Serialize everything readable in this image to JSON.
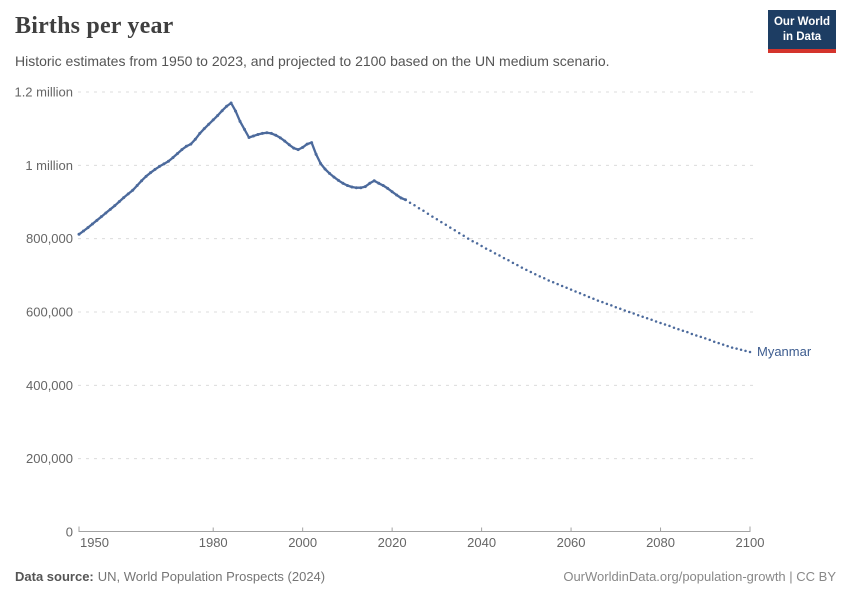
{
  "header": {
    "title": "Births per year",
    "subtitle": "Historic estimates from 1950 to 2023, and projected to 2100 based on the UN medium scenario.",
    "logo": {
      "line1": "Our World",
      "line2": "in Data",
      "bg_color": "#1d3d63",
      "accent_color": "#d4342c"
    }
  },
  "footer": {
    "source_label": "Data source:",
    "source_text": "UN, World Population Prospects (2024)",
    "right_text": "OurWorldinData.org/population-growth | CC BY"
  },
  "chart_data": {
    "type": "line",
    "title": "Births per year",
    "entity_label": "Myanmar",
    "xlabel": "",
    "ylabel": "",
    "xlim": [
      1950,
      2100
    ],
    "ylim": [
      0,
      1200000
    ],
    "grid": true,
    "legend_position": "end-of-line-label",
    "colors": {
      "line": "#4c6a9c",
      "entity_label": "#3d5c8f",
      "grid": "#dcdcdc",
      "axis": "#a3a3a3",
      "tick_text": "#666666"
    },
    "y_ticks": [
      {
        "value": 1200000,
        "label": "1.2 million"
      },
      {
        "value": 1000000,
        "label": "1 million"
      },
      {
        "value": 800000,
        "label": "800,000"
      },
      {
        "value": 600000,
        "label": "600,000"
      },
      {
        "value": 400000,
        "label": "400,000"
      },
      {
        "value": 200000,
        "label": "200,000"
      },
      {
        "value": 0,
        "label": "0"
      }
    ],
    "x_ticks": [
      1950,
      1980,
      2000,
      2020,
      2040,
      2060,
      2080,
      2100
    ],
    "series": [
      {
        "name": "historic",
        "style": "solid",
        "start_year": 1950,
        "end_year": 2023,
        "x_step": 1,
        "values": [
          812000,
          821000,
          830000,
          840000,
          850000,
          860000,
          870000,
          880000,
          890000,
          901000,
          912000,
          922000,
          932000,
          945000,
          958000,
          970000,
          980000,
          989000,
          997000,
          1004000,
          1011000,
          1021000,
          1032000,
          1043000,
          1052000,
          1058000,
          1071000,
          1087000,
          1100000,
          1112000,
          1124000,
          1136000,
          1149000,
          1161000,
          1170000,
          1148000,
          1120000,
          1098000,
          1076000,
          1080000,
          1084000,
          1087000,
          1089000,
          1087000,
          1082000,
          1075000,
          1066000,
          1056000,
          1047000,
          1043000,
          1049000,
          1058000,
          1062000,
          1030000,
          1005000,
          990000,
          978000,
          968000,
          959000,
          951000,
          945000,
          941000,
          939000,
          939000,
          942000,
          951000,
          958000,
          951000,
          945000,
          937000,
          928000,
          919000,
          911000,
          906000
        ]
      },
      {
        "name": "projection (UN medium scenario)",
        "style": "dotted",
        "start_year": 2023,
        "end_year": 2100,
        "x_step": 1,
        "values": [
          906000,
          898000,
          891000,
          883000,
          876000,
          868000,
          860000,
          853000,
          845000,
          838000,
          830000,
          823000,
          815000,
          808000,
          800000,
          793000,
          787000,
          780000,
          773000,
          767000,
          760000,
          754000,
          747000,
          741000,
          734000,
          728000,
          721000,
          715000,
          709000,
          703000,
          697000,
          692000,
          686000,
          681000,
          676000,
          671000,
          666000,
          661000,
          656000,
          651000,
          646000,
          641000,
          636000,
          631000,
          627000,
          622000,
          618000,
          613000,
          609000,
          604000,
          600000,
          596000,
          591000,
          587000,
          583000,
          579000,
          574000,
          570000,
          566000,
          562000,
          557000,
          553000,
          549000,
          545000,
          540000,
          536000,
          532000,
          528000,
          524000,
          519000,
          515000,
          511000,
          507000,
          503000,
          500000,
          497000,
          494000,
          491000
        ]
      }
    ]
  }
}
